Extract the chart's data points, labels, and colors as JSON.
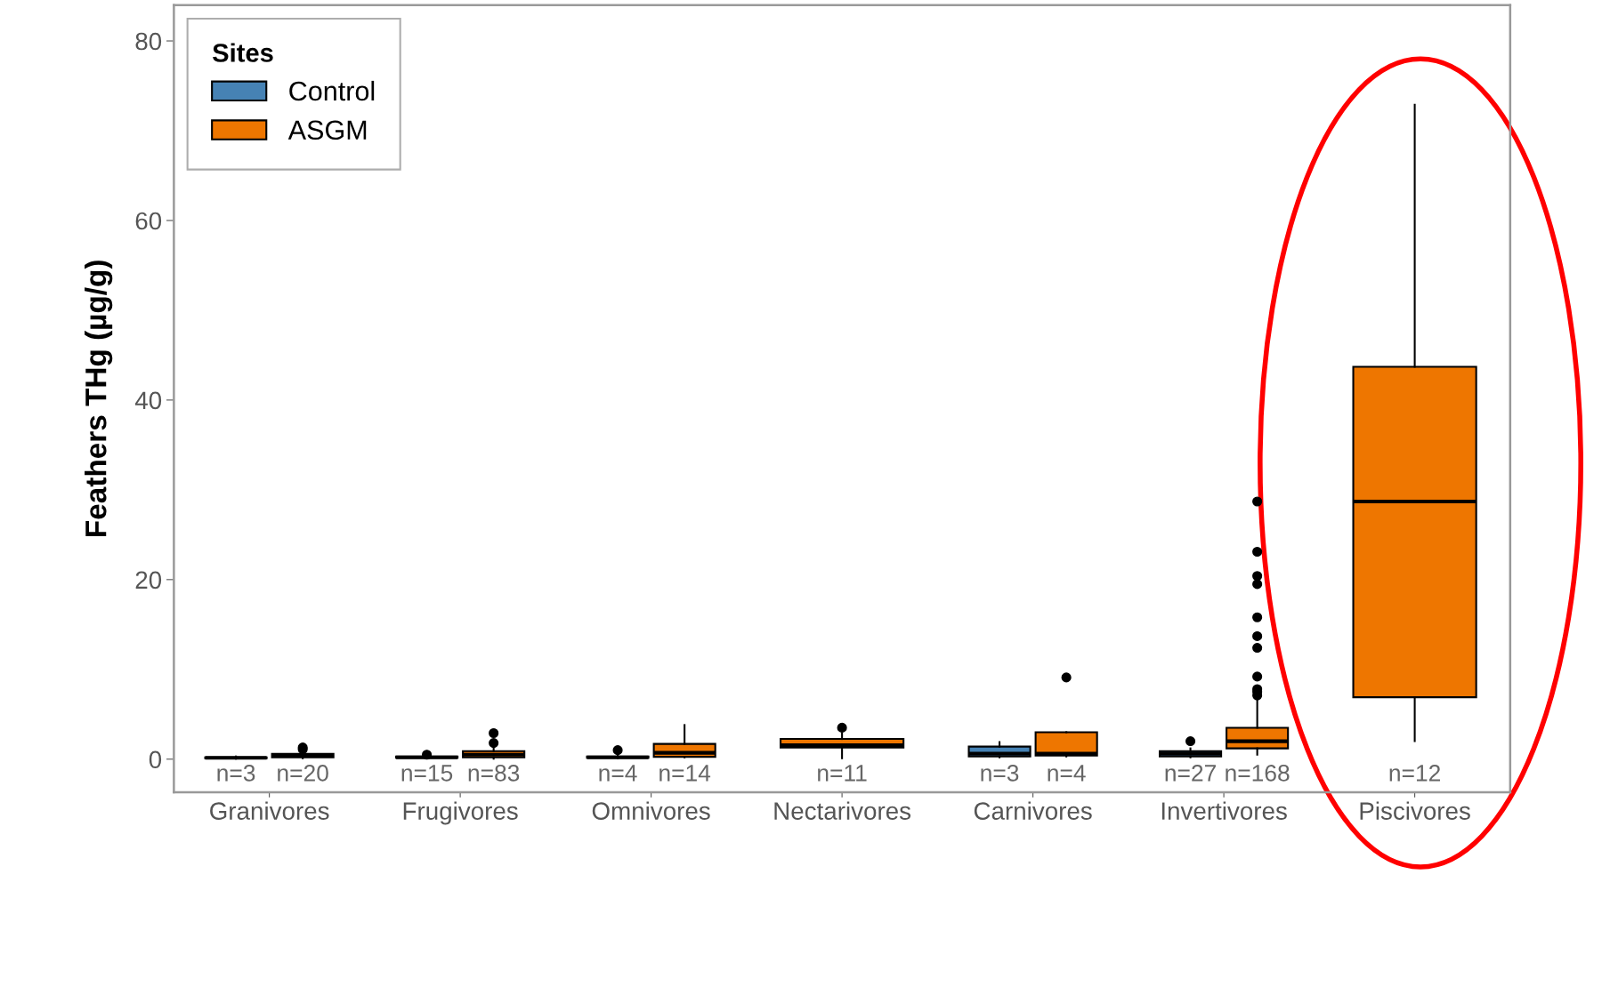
{
  "chart_data": {
    "type": "box",
    "ylabel": "Feathers THg (µg/g)",
    "legend_title": "Sites",
    "legend": "top left",
    "grid": false,
    "categories": [
      "Granivores",
      "Frugivores",
      "Omnivores",
      "Nectarivores",
      "Carnivores",
      "Invertivores",
      "Piscivores"
    ],
    "ylim": [
      -3.7,
      84
    ],
    "yticks": [
      0,
      20,
      40,
      60,
      80
    ],
    "series": [
      {
        "name": "Control",
        "color": "#4682b4",
        "boxes": [
          {
            "low": 0.05,
            "q1": 0.1,
            "median": 0.15,
            "q3": 0.2,
            "high": 0.3
          },
          {
            "low": 0.1,
            "q1": 0.15,
            "median": 0.2,
            "q3": 0.3,
            "high": 0.4,
            "outliers": [
              0.5
            ]
          },
          {
            "low": 0.1,
            "q1": 0.15,
            "median": 0.2,
            "q3": 0.3,
            "high": 0.5,
            "outliers": [
              1.0
            ]
          },
          null,
          {
            "low": 0.2,
            "q1": 0.3,
            "median": 0.6,
            "q3": 1.4,
            "high": 1.9
          },
          {
            "low": 0.2,
            "q1": 0.3,
            "median": 0.6,
            "q3": 0.9,
            "high": 1.2,
            "outliers": [
              2.0
            ]
          },
          null
        ]
      },
      {
        "name": "ASGM",
        "color": "#ee7600",
        "boxes": [
          {
            "low": 0.1,
            "q1": 0.2,
            "median": 0.4,
            "q3": 0.6,
            "high": 0.8,
            "outliers": [
              1.1,
              1.3
            ]
          },
          {
            "low": 0.05,
            "q1": 0.2,
            "median": 0.5,
            "q3": 0.9,
            "high": 1.3,
            "outliers": [
              1.8,
              2.9
            ]
          },
          {
            "low": 0.2,
            "q1": 0.26,
            "median": 0.7,
            "q3": 1.7,
            "high": 3.8
          },
          {
            "low": 0.1,
            "q1": 1.3,
            "median": 1.55,
            "q3": 2.25,
            "high": 2.9,
            "outliers": [
              3.5
            ]
          },
          {
            "low": 0.3,
            "q1": 0.4,
            "median": 0.6,
            "q3": 3.0,
            "high": 3.0,
            "outliers": [
              9.1
            ]
          },
          {
            "low": 0.5,
            "q1": 1.2,
            "median": 2.0,
            "q3": 3.5,
            "high": 6.6,
            "outliers": [
              7.1,
              7.5,
              7.8,
              9.2,
              12.4,
              13.7,
              15.8,
              19.5,
              20.4,
              23.1,
              28.7
            ]
          },
          {
            "low": 2.0,
            "q1": 6.9,
            "median": 28.7,
            "q3": 43.7,
            "high": 72.9
          }
        ]
      }
    ],
    "annotations": [
      "n=3",
      "n=20",
      "n=15",
      "n=83",
      "n=4",
      "n=14",
      "n=11",
      "n=3",
      "n=4",
      "n=27",
      "n=168",
      "n=12"
    ]
  }
}
